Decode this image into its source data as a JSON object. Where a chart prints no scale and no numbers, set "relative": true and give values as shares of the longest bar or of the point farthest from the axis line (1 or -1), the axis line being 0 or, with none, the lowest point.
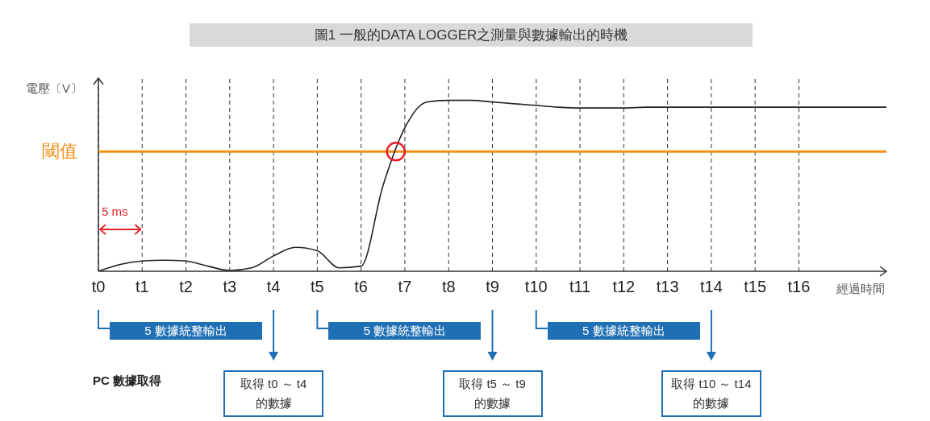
{
  "chart_data": {
    "type": "line",
    "title": "圖1 一般的DATA LOGGER之測量與數據輸出的時機",
    "ylabel": "電壓〔V〕",
    "xlabel": "經過時間",
    "relative": true,
    "categories": [
      "t0",
      null,
      "t1",
      null,
      "t2",
      null,
      "t3",
      null,
      "t4",
      null,
      "t5",
      null,
      "t6",
      null,
      "t7",
      null,
      "t8",
      null,
      "t9",
      null,
      "t10",
      null,
      "t11",
      null,
      "t12",
      null,
      "t13",
      null,
      "t14",
      null,
      "t15",
      null,
      "t16",
      null,
      null,
      null,
      null
    ],
    "series": [
      {
        "color": "#222222",
        "values": [
          0,
          0.04,
          0.06,
          0.065,
          0.06,
          0.03,
          0.005,
          0.02,
          0.09,
          0.14,
          0.12,
          0.02,
          0.03,
          0.5,
          0.84,
          0.99,
          1,
          1,
          0.99,
          0.98,
          0.97,
          0.96,
          0.955,
          0.955,
          0.955,
          0.96,
          0.96,
          0.96,
          0.96,
          0.96,
          0.96,
          0.96,
          0.96,
          0.96,
          0.96,
          0.96,
          0.96
        ]
      }
    ],
    "grid": "x",
    "marker": "none",
    "line_style": "solid",
    "ref_lines": [
      {
        "axis": "y",
        "value": 0.7,
        "label": "閾值",
        "color": "#f39019"
      }
    ],
    "annotations": [
      "5 ms",
      "5 數據統整輸出",
      "5 數據統整輸出",
      "5 數據統整輸出",
      "PC 數據取得",
      "取得 t0 ～ t4\n的數據",
      "取得 t5 ～ t9\n的數據",
      "取得 t10 ～ t14\n的數據"
    ]
  }
}
